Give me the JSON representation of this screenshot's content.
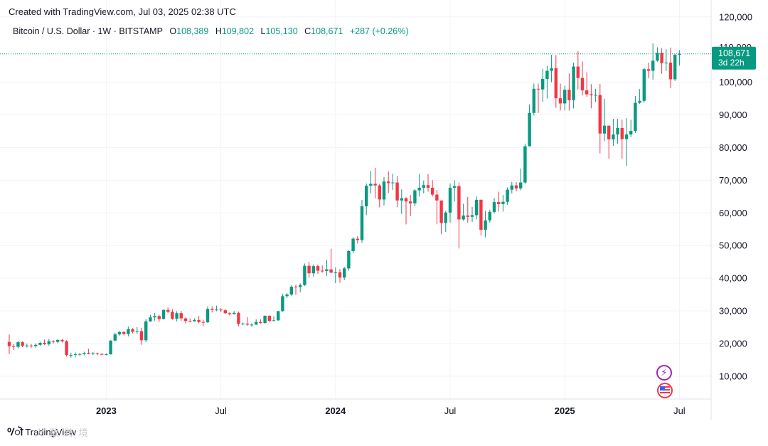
{
  "header": {
    "created_text": "Created with TradingView.com, Jul 03, 2025 02:38 UTC"
  },
  "legend": {
    "symbol": "Bitcoin / U.S. Dollar · 1W · BITSTAMP",
    "open_label": "O",
    "open": "108,389",
    "high_label": "H",
    "high": "109,802",
    "low_label": "L",
    "low": "105,130",
    "close_label": "C",
    "close": "108,671",
    "change": "+287 (+0.26%)"
  },
  "price_tag": {
    "price": "108,671",
    "countdown": "3d 22h",
    "hidden_tick": "110,000"
  },
  "footer": {
    "brand": "TradingView",
    "watermark": "火 数 跨 境"
  },
  "colors": {
    "up": "#089981",
    "down": "#f23645",
    "grid": "#f0f3fa",
    "text": "#131722"
  },
  "chart_data": {
    "type": "candlestick",
    "title": "Bitcoin / U.S. Dollar · 1W · BITSTAMP",
    "ylim": [
      3000,
      123000
    ],
    "y_ticks": [
      {
        "value": 120000,
        "label": "120,000"
      },
      {
        "value": 100000,
        "label": "100,000"
      },
      {
        "value": 90000,
        "label": "90,000"
      },
      {
        "value": 80000,
        "label": "80,000"
      },
      {
        "value": 70000,
        "label": "70,000"
      },
      {
        "value": 60000,
        "label": "60,000"
      },
      {
        "value": 50000,
        "label": "50,000"
      },
      {
        "value": 40000,
        "label": "40,000"
      },
      {
        "value": 30000,
        "label": "30,000"
      },
      {
        "value": 20000,
        "label": "20,000"
      },
      {
        "value": 10000,
        "label": "10,000"
      }
    ],
    "x_ticks": [
      {
        "index": 22,
        "label": "2023",
        "bold": true
      },
      {
        "index": 48,
        "label": "Jul",
        "bold": false
      },
      {
        "index": 74,
        "label": "2024",
        "bold": true
      },
      {
        "index": 100,
        "label": "Jul",
        "bold": false
      },
      {
        "index": 126,
        "label": "2025",
        "bold": true
      },
      {
        "index": 152,
        "label": "Jul",
        "bold": false
      }
    ],
    "last_price": 108671,
    "candles": [
      [
        20500,
        22800,
        16800,
        19200
      ],
      [
        19200,
        19800,
        18000,
        19000
      ],
      [
        19000,
        20700,
        18500,
        20400
      ],
      [
        20400,
        20700,
        18900,
        19300
      ],
      [
        19300,
        20000,
        18800,
        19400
      ],
      [
        19400,
        19800,
        18700,
        19200
      ],
      [
        19200,
        20100,
        18800,
        19600
      ],
      [
        19600,
        20500,
        19300,
        20200
      ],
      [
        20200,
        21200,
        19600,
        19800
      ],
      [
        19800,
        21400,
        19300,
        20700
      ],
      [
        20700,
        21000,
        20000,
        20500
      ],
      [
        20500,
        21400,
        20100,
        21100
      ],
      [
        21100,
        21400,
        20300,
        20700
      ],
      [
        20700,
        21000,
        16000,
        16500
      ],
      [
        16500,
        17200,
        15700,
        16500
      ],
      [
        16500,
        17300,
        15800,
        16700
      ],
      [
        16700,
        17100,
        16200,
        16800
      ],
      [
        16800,
        17500,
        16400,
        17100
      ],
      [
        17100,
        18400,
        16700,
        16800
      ],
      [
        16800,
        17400,
        16500,
        17000
      ],
      [
        17000,
        17200,
        16400,
        16800
      ],
      [
        16800,
        17100,
        16400,
        16600
      ],
      [
        16600,
        17000,
        16400,
        16700
      ],
      [
        16700,
        21000,
        16600,
        20900
      ],
      [
        20900,
        23300,
        20700,
        22800
      ],
      [
        22800,
        23900,
        22400,
        23500
      ],
      [
        23500,
        23900,
        22500,
        22900
      ],
      [
        22900,
        25200,
        22200,
        24400
      ],
      [
        24400,
        24700,
        23100,
        23600
      ],
      [
        23600,
        25000,
        23000,
        23800
      ],
      [
        23800,
        24800,
        19600,
        21000
      ],
      [
        21000,
        27500,
        20400,
        26800
      ],
      [
        26800,
        28800,
        26600,
        28000
      ],
      [
        28000,
        29400,
        27000,
        28400
      ],
      [
        28400,
        28800,
        26600,
        27500
      ],
      [
        27500,
        30500,
        27400,
        30300
      ],
      [
        30300,
        31000,
        29300,
        29700
      ],
      [
        29700,
        30500,
        27300,
        27600
      ],
      [
        27600,
        29900,
        26800,
        29300
      ],
      [
        29300,
        30000,
        27000,
        27700
      ],
      [
        27700,
        28000,
        26200,
        26900
      ],
      [
        26900,
        27700,
        26500,
        26800
      ],
      [
        26800,
        27700,
        26700,
        27200
      ],
      [
        27200,
        28400,
        26200,
        26600
      ],
      [
        26600,
        27300,
        25300,
        26500
      ],
      [
        26500,
        31400,
        26300,
        30600
      ],
      [
        30600,
        31400,
        29500,
        30300
      ],
      [
        30300,
        31600,
        29900,
        30400
      ],
      [
        30400,
        30800,
        29600,
        30200
      ],
      [
        30200,
        30500,
        29100,
        29300
      ],
      [
        29300,
        29600,
        28600,
        29000
      ],
      [
        29000,
        29900,
        28900,
        29400
      ],
      [
        29400,
        29800,
        25300,
        26000
      ],
      [
        26000,
        26400,
        25600,
        26100
      ],
      [
        26100,
        28100,
        25400,
        25800
      ],
      [
        25800,
        26200,
        25100,
        25800
      ],
      [
        25800,
        27400,
        25700,
        26600
      ],
      [
        26600,
        27400,
        26100,
        26300
      ],
      [
        26300,
        28600,
        26000,
        28500
      ],
      [
        28500,
        28600,
        26600,
        26900
      ],
      [
        26900,
        28300,
        26800,
        27100
      ],
      [
        27100,
        30000,
        26900,
        29900
      ],
      [
        29900,
        35200,
        29800,
        34500
      ],
      [
        34500,
        35400,
        33900,
        35000
      ],
      [
        35000,
        37900,
        34600,
        37400
      ],
      [
        37400,
        38000,
        34900,
        37300
      ],
      [
        37300,
        38400,
        35700,
        37900
      ],
      [
        37900,
        44500,
        37600,
        43800
      ],
      [
        43800,
        45000,
        40200,
        41500
      ],
      [
        41500,
        44200,
        40500,
        43700
      ],
      [
        43700,
        44200,
        41300,
        42300
      ],
      [
        42300,
        43900,
        41700,
        42200
      ],
      [
        42200,
        45600,
        40700,
        42700
      ],
      [
        42700,
        49000,
        41500,
        41700
      ],
      [
        41700,
        43300,
        38500,
        41800
      ],
      [
        41800,
        42800,
        38600,
        40200
      ],
      [
        40200,
        43500,
        39400,
        43000
      ],
      [
        43000,
        48600,
        42300,
        48300
      ],
      [
        48300,
        52600,
        47600,
        52100
      ],
      [
        52100,
        52900,
        50600,
        51700
      ],
      [
        51700,
        64000,
        50800,
        62000
      ],
      [
        62000,
        69000,
        59300,
        68300
      ],
      [
        68300,
        72800,
        66000,
        68900
      ],
      [
        68900,
        73800,
        64500,
        68400
      ],
      [
        68400,
        68900,
        61700,
        64100
      ],
      [
        64100,
        71000,
        62300,
        69600
      ],
      [
        69600,
        72700,
        66100,
        69100
      ],
      [
        69100,
        72000,
        67000,
        69300
      ],
      [
        69300,
        71300,
        61700,
        63800
      ],
      [
        63800,
        67200,
        59700,
        64500
      ],
      [
        64500,
        64800,
        56500,
        63500
      ],
      [
        63500,
        65500,
        59000,
        62900
      ],
      [
        62900,
        67200,
        62000,
        66900
      ],
      [
        66900,
        71900,
        65000,
        67700
      ],
      [
        67700,
        69900,
        66000,
        68500
      ],
      [
        68500,
        71900,
        66500,
        67700
      ],
      [
        67700,
        70000,
        65000,
        65600
      ],
      [
        65600,
        67000,
        56500,
        63800
      ],
      [
        63800,
        63800,
        53500,
        56900
      ],
      [
        56900,
        60600,
        54200,
        60100
      ],
      [
        60100,
        69000,
        57000,
        67700
      ],
      [
        67700,
        70000,
        63500,
        68200
      ],
      [
        68200,
        69300,
        49100,
        58000
      ],
      [
        58000,
        62800,
        57600,
        59200
      ],
      [
        59200,
        64900,
        57000,
        58800
      ],
      [
        58800,
        61800,
        57200,
        59300
      ],
      [
        59300,
        65000,
        58000,
        64000
      ],
      [
        64000,
        64100,
        53000,
        54800
      ],
      [
        54800,
        60600,
        52500,
        57700
      ],
      [
        57700,
        61000,
        57000,
        60300
      ],
      [
        60300,
        64600,
        59800,
        63300
      ],
      [
        63300,
        66500,
        60400,
        62700
      ],
      [
        62700,
        65500,
        60400,
        63400
      ],
      [
        63400,
        67800,
        62500,
        67100
      ],
      [
        67100,
        69500,
        66000,
        68400
      ],
      [
        68400,
        69400,
        66600,
        67500
      ],
      [
        67500,
        73600,
        66900,
        69300
      ],
      [
        69300,
        81200,
        68900,
        80400
      ],
      [
        80400,
        93200,
        80300,
        90600
      ],
      [
        90600,
        99600,
        89800,
        98000
      ],
      [
        98000,
        99600,
        90600,
        97800
      ],
      [
        97800,
        104100,
        94000,
        101000
      ],
      [
        101000,
        105000,
        95000,
        103500
      ],
      [
        103500,
        108400,
        100000,
        104300
      ],
      [
        104300,
        108300,
        92200,
        95100
      ],
      [
        95100,
        99600,
        91300,
        93500
      ],
      [
        93500,
        98900,
        91400,
        97700
      ],
      [
        97700,
        102700,
        91300,
        94500
      ],
      [
        94500,
        106000,
        92000,
        104800
      ],
      [
        104800,
        109600,
        97800,
        101300
      ],
      [
        101300,
        106400,
        96000,
        97500
      ],
      [
        97500,
        103000,
        95500,
        96300
      ],
      [
        96300,
        99400,
        92000,
        96000
      ],
      [
        96000,
        98000,
        94000,
        96100
      ],
      [
        96100,
        99500,
        78200,
        84300
      ],
      [
        84300,
        95000,
        82000,
        86700
      ],
      [
        86700,
        86700,
        76600,
        82500
      ],
      [
        82500,
        88800,
        80500,
        84000
      ],
      [
        84000,
        88800,
        81200,
        86000
      ],
      [
        86000,
        88500,
        76500,
        82600
      ],
      [
        82600,
        89000,
        74400,
        84000
      ],
      [
        84000,
        88500,
        83200,
        85100
      ],
      [
        85100,
        95800,
        84500,
        93700
      ],
      [
        93700,
        97900,
        93400,
        94300
      ],
      [
        94300,
        104300,
        93700,
        104000
      ],
      [
        104000,
        106000,
        101200,
        103500
      ],
      [
        103500,
        111900,
        100800,
        106600
      ],
      [
        106600,
        110700,
        106300,
        109000
      ],
      [
        109000,
        110400,
        102600,
        105800
      ],
      [
        105800,
        110100,
        103400,
        106000
      ],
      [
        106000,
        110600,
        98200,
        100900
      ],
      [
        100900,
        108600,
        100400,
        108400
      ],
      [
        108389,
        109802,
        105130,
        108671
      ]
    ]
  }
}
